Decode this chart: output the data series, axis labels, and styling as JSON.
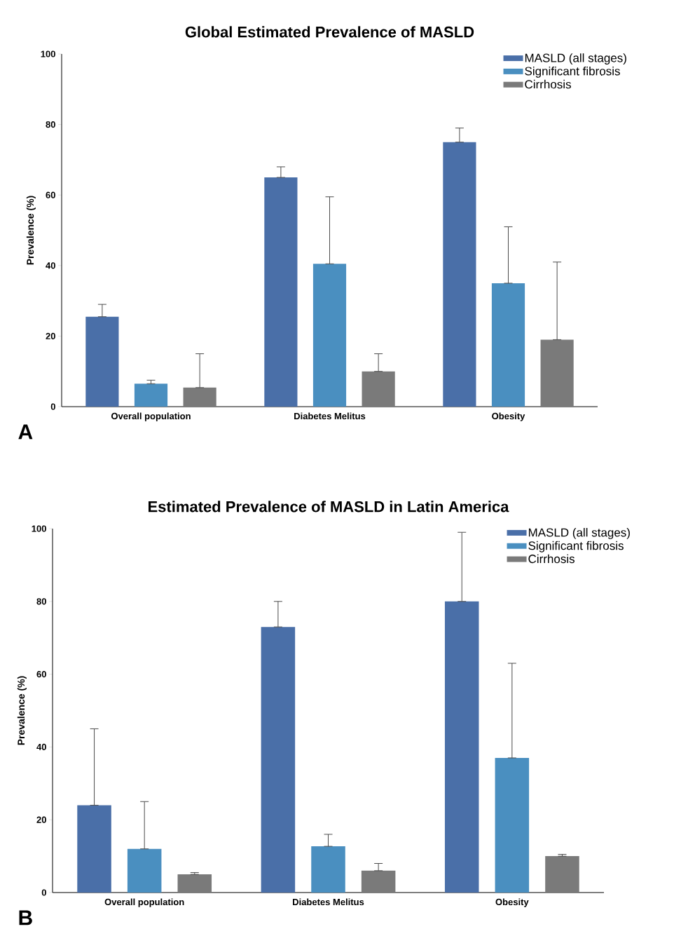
{
  "chart_data": [
    {
      "type": "bar",
      "title": "Global Estimated Prevalence of MASLD",
      "ylabel": "Prevalence (%)",
      "categories": [
        "Overall population",
        "Diabetes Melitus",
        "Obesity"
      ],
      "series": [
        {
          "name": "MASLD (all stages)",
          "color": "#4a6fa8",
          "values": [
            25.5,
            65,
            75
          ],
          "errors": [
            [
              25.5,
              29
            ],
            [
              65,
              68
            ],
            [
              75,
              79
            ]
          ]
        },
        {
          "name": "Significant fibrosis",
          "color": "#4a8fc0",
          "values": [
            6.5,
            40.5,
            35
          ],
          "errors": [
            [
              6.5,
              7.5
            ],
            [
              40.5,
              59.5
            ],
            [
              35,
              51
            ]
          ]
        },
        {
          "name": "Cirrhosis",
          "color": "#7a7a7a",
          "values": [
            5.4,
            10,
            19
          ],
          "errors": [
            [
              5.4,
              15
            ],
            [
              10,
              15
            ],
            [
              19,
              41
            ]
          ]
        }
      ],
      "ylim": [
        0,
        100
      ],
      "yticks": [
        0,
        20,
        40,
        60,
        80,
        100
      ],
      "legend": "top right",
      "annotations": [
        "A"
      ]
    },
    {
      "type": "bar",
      "title": "Estimated Prevalence of MASLD in Latin America",
      "ylabel": "Prevalence (%)",
      "categories": [
        "Overall population",
        "Diabetes Melitus",
        "Obesity"
      ],
      "series": [
        {
          "name": "MASLD (all stages)",
          "color": "#4a6fa8",
          "values": [
            24,
            73,
            80
          ],
          "errors": [
            [
              24,
              45
            ],
            [
              73,
              80
            ],
            [
              80,
              99
            ]
          ]
        },
        {
          "name": "Significant fibrosis",
          "color": "#4a8fc0",
          "values": [
            12,
            12.7,
            37
          ],
          "errors": [
            [
              12,
              25
            ],
            [
              12.7,
              16
            ],
            [
              37,
              63
            ]
          ]
        },
        {
          "name": "Cirrhosis",
          "color": "#7a7a7a",
          "values": [
            5,
            6,
            10
          ],
          "errors": [
            [
              5,
              5.5
            ],
            [
              6,
              8
            ],
            [
              10,
              10.5
            ]
          ]
        }
      ],
      "ylim": [
        0,
        100
      ],
      "yticks": [
        0,
        20,
        40,
        60,
        80,
        100
      ],
      "legend": "top right",
      "annotations": [
        "B"
      ]
    }
  ]
}
